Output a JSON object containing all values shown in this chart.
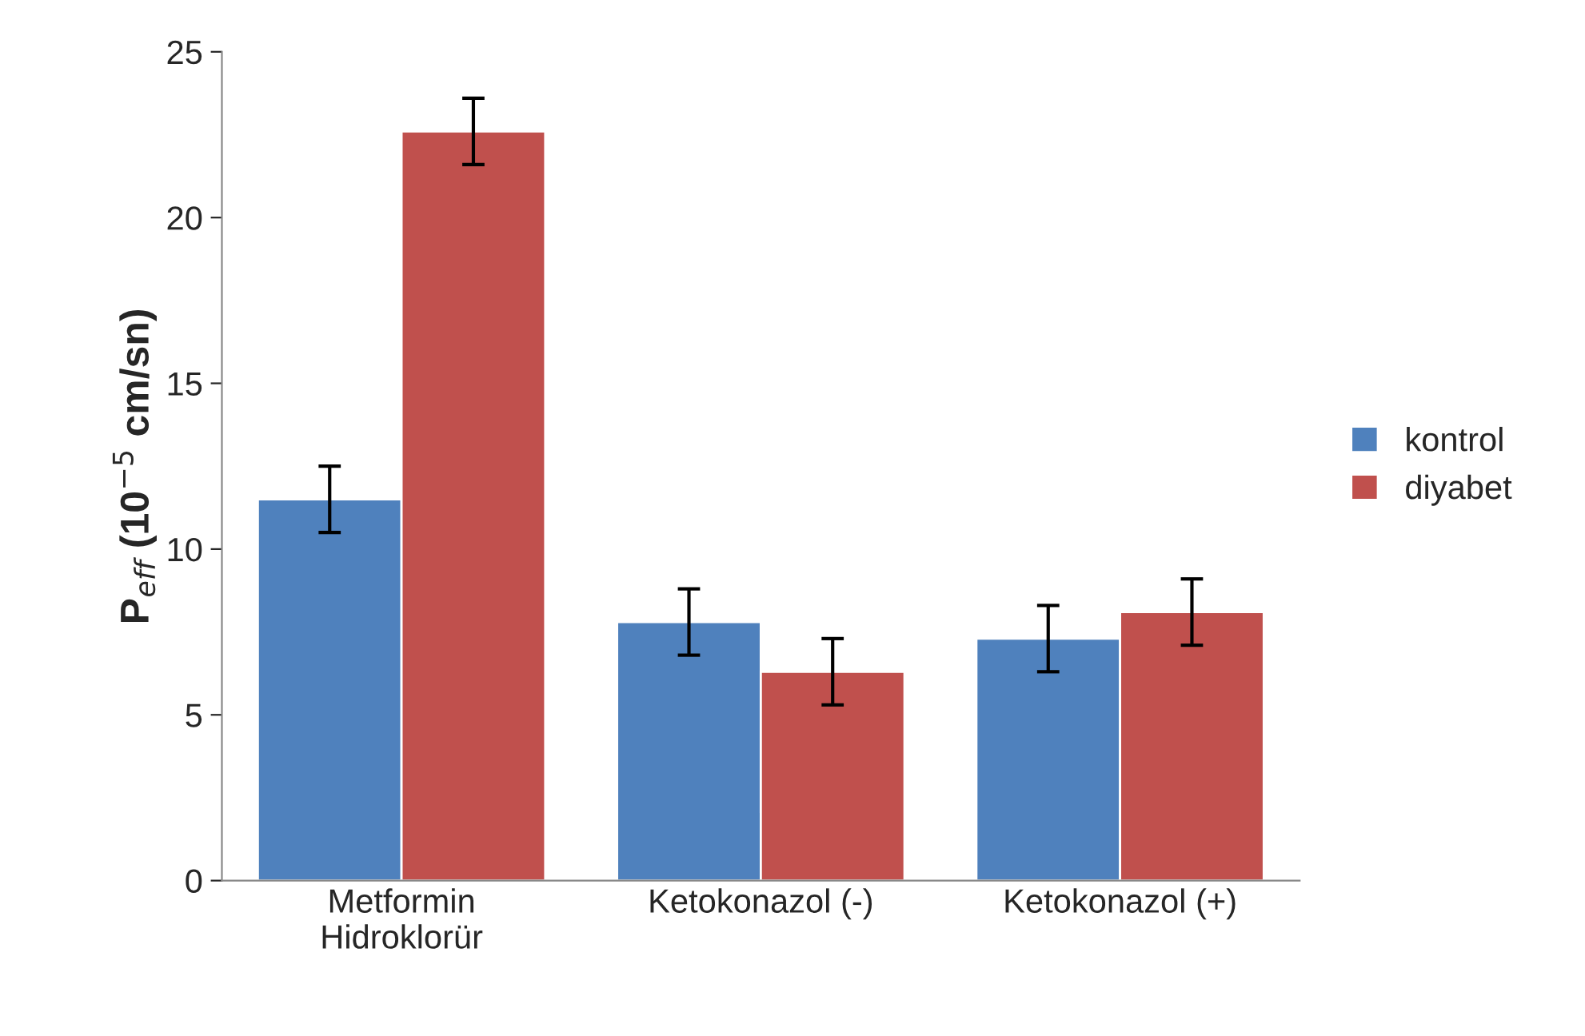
{
  "chart_data": {
    "type": "bar",
    "ylabel": "P$_{eff}$ (10$^{−5}$ cm/sn)",
    "categories": [
      "Metformin\nHidroklorür",
      "Ketokonazol (-)",
      "Ketokonazol (+)"
    ],
    "series": [
      {
        "name": "kontrol",
        "color": "#4f81bd",
        "values": [
          11.5,
          7.8,
          7.3
        ],
        "errors": [
          1,
          1,
          1
        ]
      },
      {
        "name": "diyabet",
        "color": "#c0504d",
        "values": [
          22.6,
          6.3,
          8.1
        ],
        "errors": [
          1,
          1,
          1
        ]
      }
    ],
    "ylim": [
      0,
      25
    ],
    "yticks": [
      0,
      5,
      10,
      15,
      20,
      25
    ],
    "grid": false,
    "legend": "right"
  }
}
